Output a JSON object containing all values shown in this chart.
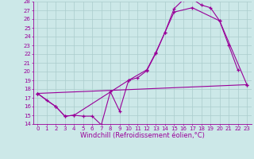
{
  "xlabel": "Windchill (Refroidissement éolien,°C)",
  "xlim": [
    -0.5,
    23.5
  ],
  "ylim": [
    14,
    28
  ],
  "xticks": [
    0,
    1,
    2,
    3,
    4,
    5,
    6,
    7,
    8,
    9,
    10,
    11,
    12,
    13,
    14,
    15,
    16,
    17,
    18,
    19,
    20,
    21,
    22,
    23
  ],
  "yticks": [
    14,
    15,
    16,
    17,
    18,
    19,
    20,
    21,
    22,
    23,
    24,
    25,
    26,
    27,
    28
  ],
  "bg_color": "#cce8e8",
  "line_color": "#990099",
  "grid_color": "#aacccc",
  "font_size": 6,
  "tick_font_size": 5,
  "line1_x": [
    0,
    1,
    2,
    3,
    4,
    5,
    6,
    7,
    8,
    9,
    10,
    11,
    12,
    13,
    14,
    15,
    16,
    17,
    18,
    19,
    20,
    21,
    22
  ],
  "line1_y": [
    17.5,
    16.7,
    16.0,
    14.9,
    15.0,
    14.9,
    14.9,
    13.9,
    17.7,
    15.5,
    19.0,
    19.3,
    20.1,
    22.1,
    24.5,
    27.2,
    28.2,
    28.3,
    27.6,
    27.3,
    25.8,
    23.0,
    20.2
  ],
  "line2_x": [
    0,
    2,
    3,
    4,
    10,
    12,
    13,
    14,
    15,
    17,
    20,
    23
  ],
  "line2_y": [
    17.5,
    16.0,
    14.9,
    15.0,
    19.0,
    20.2,
    22.2,
    24.5,
    26.8,
    27.3,
    25.8,
    18.5
  ],
  "line3_x": [
    0,
    23
  ],
  "line3_y": [
    17.5,
    18.5
  ]
}
